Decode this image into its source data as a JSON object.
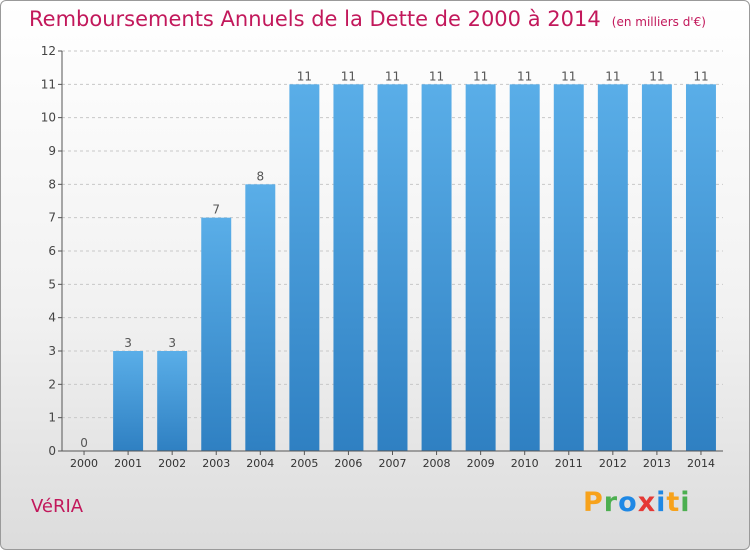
{
  "title": "Remboursements Annuels de la Dette de 2000 à 2014",
  "unit_note": "(en milliers d'€)",
  "commune": "VéRIA",
  "brand": {
    "letters": [
      "P",
      "r",
      "o",
      "x",
      "i",
      "t",
      "i"
    ],
    "colors": [
      "#f7a21b",
      "#4caf50",
      "#1e88e5",
      "#e53935",
      "#1e88e5",
      "#f7a21b",
      "#4caf50"
    ]
  },
  "colors": {
    "bar_top": "#5aaee8",
    "bar_bottom": "#2f80c2",
    "title": "#c2185b",
    "grid": "#c8c8c8",
    "axis": "#555555"
  },
  "chart_data": {
    "type": "bar",
    "title": "Remboursements Annuels de la Dette de 2000 à 2014",
    "xlabel": "",
    "ylabel": "",
    "categories": [
      "2000",
      "2001",
      "2002",
      "2003",
      "2004",
      "2005",
      "2006",
      "2007",
      "2008",
      "2009",
      "2010",
      "2011",
      "2012",
      "2013",
      "2014"
    ],
    "values": [
      0,
      3,
      3,
      7,
      8,
      11,
      11,
      11,
      11,
      11,
      11,
      11,
      11,
      11,
      11
    ],
    "data_labels": [
      "0",
      "3",
      "3",
      "7",
      "8",
      "11",
      "11",
      "11",
      "11",
      "11",
      "11",
      "11",
      "11",
      "11",
      "11"
    ],
    "y_ticks": [
      0,
      1,
      2,
      3,
      4,
      5,
      6,
      7,
      8,
      9,
      10,
      11,
      12
    ],
    "ylim": [
      0,
      12
    ],
    "grid": "horizontal dashed",
    "legend": "none"
  }
}
